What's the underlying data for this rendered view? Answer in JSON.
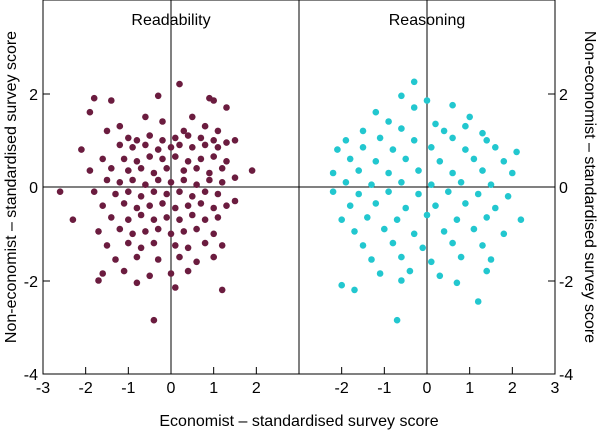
{
  "chart_data": {
    "type": "scatter",
    "xlabel": "Economist – standardised survey score",
    "ylabel_left": "Non-economist – standardised survey score",
    "ylabel_right": "Non-economist – standardised survey score",
    "ylim": [
      -4,
      4
    ],
    "y_ticks": [
      "2",
      "0",
      "-2",
      "-4"
    ],
    "grid": false,
    "panels": [
      {
        "title": "Readability",
        "color": "#6b1c3f",
        "xlim": [
          -3,
          3
        ],
        "x_ticks": [
          "-3",
          "-2",
          "-1",
          "0",
          "1",
          "2"
        ],
        "points": [
          [
            0.2,
            2.2
          ],
          [
            -0.3,
            1.95
          ],
          [
            -1.8,
            1.9
          ],
          [
            -1.4,
            1.85
          ],
          [
            0.9,
            1.9
          ],
          [
            1.0,
            1.85
          ],
          [
            -1.9,
            1.6
          ],
          [
            -0.6,
            1.5
          ],
          [
            0.5,
            1.5
          ],
          [
            1.3,
            1.7
          ],
          [
            -1.5,
            1.2
          ],
          [
            -1.2,
            1.3
          ],
          [
            -0.2,
            1.4
          ],
          [
            0.3,
            1.2
          ],
          [
            0.8,
            1.3
          ],
          [
            1.1,
            1.2
          ],
          [
            -1.0,
            1.05
          ],
          [
            -0.8,
            1.0
          ],
          [
            -0.5,
            1.1
          ],
          [
            -0.2,
            1.0
          ],
          [
            0.1,
            1.05
          ],
          [
            0.4,
            1.1
          ],
          [
            0.7,
            1.05
          ],
          [
            1.0,
            1.0
          ],
          [
            1.3,
            0.95
          ],
          [
            1.5,
            1.0
          ],
          [
            -2.1,
            0.8
          ],
          [
            -1.2,
            0.9
          ],
          [
            -0.9,
            0.85
          ],
          [
            -0.6,
            0.9
          ],
          [
            -0.3,
            0.8
          ],
          [
            0.0,
            0.85
          ],
          [
            0.2,
            0.9
          ],
          [
            0.5,
            0.85
          ],
          [
            0.8,
            0.9
          ],
          [
            1.1,
            0.85
          ],
          [
            -1.6,
            0.6
          ],
          [
            -1.1,
            0.6
          ],
          [
            -0.8,
            0.55
          ],
          [
            -0.5,
            0.65
          ],
          [
            -0.2,
            0.6
          ],
          [
            0.1,
            0.65
          ],
          [
            0.4,
            0.55
          ],
          [
            0.7,
            0.6
          ],
          [
            1.0,
            0.65
          ],
          [
            1.3,
            0.55
          ],
          [
            -1.9,
            0.35
          ],
          [
            -1.4,
            0.4
          ],
          [
            -1.0,
            0.35
          ],
          [
            -0.7,
            0.4
          ],
          [
            -0.4,
            0.3
          ],
          [
            -0.1,
            0.4
          ],
          [
            0.3,
            0.35
          ],
          [
            0.6,
            0.4
          ],
          [
            0.9,
            0.3
          ],
          [
            1.2,
            0.4
          ],
          [
            1.9,
            0.35
          ],
          [
            -1.5,
            0.15
          ],
          [
            -1.2,
            0.1
          ],
          [
            -0.9,
            0.15
          ],
          [
            -0.6,
            0.05
          ],
          [
            -0.3,
            0.15
          ],
          [
            0.0,
            0.1
          ],
          [
            0.3,
            0.15
          ],
          [
            0.6,
            0.05
          ],
          [
            0.9,
            0.15
          ],
          [
            1.2,
            0.1
          ],
          [
            1.5,
            0.2
          ],
          [
            -2.6,
            -0.1
          ],
          [
            -1.8,
            -0.1
          ],
          [
            -1.3,
            -0.15
          ],
          [
            -1.0,
            -0.1
          ],
          [
            -0.7,
            -0.2
          ],
          [
            -0.4,
            -0.1
          ],
          [
            -0.1,
            -0.15
          ],
          [
            0.2,
            -0.1
          ],
          [
            0.5,
            -0.2
          ],
          [
            0.8,
            -0.1
          ],
          [
            1.1,
            -0.15
          ],
          [
            1.5,
            -0.3
          ],
          [
            -1.6,
            -0.4
          ],
          [
            -1.1,
            -0.35
          ],
          [
            -0.8,
            -0.45
          ],
          [
            -0.5,
            -0.4
          ],
          [
            -0.2,
            -0.35
          ],
          [
            0.1,
            -0.45
          ],
          [
            0.4,
            -0.4
          ],
          [
            0.7,
            -0.35
          ],
          [
            1.0,
            -0.45
          ],
          [
            1.3,
            -0.4
          ],
          [
            -2.3,
            -0.7
          ],
          [
            -1.4,
            -0.65
          ],
          [
            -1.0,
            -0.7
          ],
          [
            -0.7,
            -0.6
          ],
          [
            -0.4,
            -0.7
          ],
          [
            -0.1,
            -0.65
          ],
          [
            0.2,
            -0.7
          ],
          [
            0.5,
            -0.6
          ],
          [
            0.8,
            -0.7
          ],
          [
            1.1,
            -0.65
          ],
          [
            -1.7,
            -0.95
          ],
          [
            -1.2,
            -0.9
          ],
          [
            -0.9,
            -1.0
          ],
          [
            -0.6,
            -0.95
          ],
          [
            -0.3,
            -0.9
          ],
          [
            0.0,
            -1.0
          ],
          [
            0.3,
            -0.95
          ],
          [
            0.6,
            -0.9
          ],
          [
            1.0,
            -1.0
          ],
          [
            -1.5,
            -1.25
          ],
          [
            -1.0,
            -1.2
          ],
          [
            -0.7,
            -1.3
          ],
          [
            -0.4,
            -1.2
          ],
          [
            0.1,
            -1.25
          ],
          [
            0.4,
            -1.3
          ],
          [
            0.8,
            -1.2
          ],
          [
            1.2,
            -1.25
          ],
          [
            -1.3,
            -1.55
          ],
          [
            -0.8,
            -1.5
          ],
          [
            -0.3,
            -1.55
          ],
          [
            0.2,
            -1.5
          ],
          [
            0.6,
            -1.6
          ],
          [
            1.0,
            -1.5
          ],
          [
            -1.6,
            -1.85
          ],
          [
            -1.1,
            -1.8
          ],
          [
            -0.5,
            -1.9
          ],
          [
            0.0,
            -1.85
          ],
          [
            0.4,
            -1.8
          ],
          [
            -1.7,
            -2.0
          ],
          [
            -0.8,
            -2.05
          ],
          [
            0.1,
            -2.15
          ],
          [
            1.2,
            -2.2
          ],
          [
            -0.4,
            -2.85
          ]
        ]
      },
      {
        "title": "Reasoning",
        "color": "#22c7cf",
        "xlim": [
          -3,
          3
        ],
        "x_ticks": [
          "-2",
          "-1",
          "0",
          "1",
          "2",
          "3"
        ],
        "points": [
          [
            -0.3,
            2.25
          ],
          [
            -0.6,
            1.95
          ],
          [
            0.0,
            1.85
          ],
          [
            0.6,
            1.75
          ],
          [
            -1.2,
            1.6
          ],
          [
            -0.3,
            1.7
          ],
          [
            1.0,
            1.5
          ],
          [
            -0.9,
            1.4
          ],
          [
            0.2,
            1.35
          ],
          [
            0.9,
            1.3
          ],
          [
            -1.5,
            1.2
          ],
          [
            -0.6,
            1.25
          ],
          [
            0.4,
            1.2
          ],
          [
            1.3,
            1.15
          ],
          [
            -1.9,
            1.0
          ],
          [
            -1.1,
            1.05
          ],
          [
            -0.3,
            1.0
          ],
          [
            0.6,
            1.05
          ],
          [
            1.4,
            1.0
          ],
          [
            -2.1,
            0.8
          ],
          [
            -1.5,
            0.85
          ],
          [
            -0.8,
            0.8
          ],
          [
            0.1,
            0.85
          ],
          [
            0.9,
            0.8
          ],
          [
            1.6,
            0.85
          ],
          [
            2.1,
            0.75
          ],
          [
            -1.8,
            0.6
          ],
          [
            -1.2,
            0.55
          ],
          [
            -0.5,
            0.6
          ],
          [
            0.3,
            0.55
          ],
          [
            1.1,
            0.6
          ],
          [
            1.8,
            0.55
          ],
          [
            -2.2,
            0.3
          ],
          [
            -1.6,
            0.35
          ],
          [
            -0.9,
            0.3
          ],
          [
            -0.2,
            0.35
          ],
          [
            0.6,
            0.3
          ],
          [
            1.3,
            0.35
          ],
          [
            2.0,
            0.3
          ],
          [
            -1.9,
            0.1
          ],
          [
            -1.3,
            0.05
          ],
          [
            -0.6,
            0.1
          ],
          [
            0.1,
            0.05
          ],
          [
            0.8,
            0.1
          ],
          [
            1.5,
            0.05
          ],
          [
            -2.2,
            -0.1
          ],
          [
            -1.6,
            -0.15
          ],
          [
            -0.9,
            -0.1
          ],
          [
            -0.2,
            -0.15
          ],
          [
            0.5,
            -0.1
          ],
          [
            1.2,
            -0.15
          ],
          [
            1.9,
            -0.2
          ],
          [
            -1.8,
            -0.4
          ],
          [
            -1.2,
            -0.35
          ],
          [
            -0.5,
            -0.45
          ],
          [
            0.2,
            -0.4
          ],
          [
            0.9,
            -0.35
          ],
          [
            1.6,
            -0.45
          ],
          [
            2.2,
            -0.7
          ],
          [
            -2.0,
            -0.7
          ],
          [
            -1.4,
            -0.65
          ],
          [
            -0.7,
            -0.7
          ],
          [
            0.0,
            -0.6
          ],
          [
            0.7,
            -0.7
          ],
          [
            1.4,
            -0.65
          ],
          [
            -1.7,
            -0.95
          ],
          [
            -1.0,
            -0.9
          ],
          [
            -0.3,
            -1.0
          ],
          [
            0.4,
            -0.95
          ],
          [
            1.1,
            -0.9
          ],
          [
            1.8,
            -1.0
          ],
          [
            -1.5,
            -1.25
          ],
          [
            -0.8,
            -1.2
          ],
          [
            -0.1,
            -1.3
          ],
          [
            0.6,
            -1.2
          ],
          [
            1.3,
            -1.25
          ],
          [
            -1.3,
            -1.55
          ],
          [
            -0.6,
            -1.5
          ],
          [
            0.1,
            -1.6
          ],
          [
            0.8,
            -1.5
          ],
          [
            1.5,
            -1.55
          ],
          [
            -1.1,
            -1.85
          ],
          [
            -0.4,
            -1.8
          ],
          [
            0.3,
            -1.9
          ],
          [
            1.4,
            -1.8
          ],
          [
            -2.0,
            -2.1
          ],
          [
            -1.7,
            -2.2
          ],
          [
            -0.6,
            -2.0
          ],
          [
            0.7,
            -2.05
          ],
          [
            1.2,
            -2.45
          ],
          [
            -0.7,
            -2.85
          ]
        ]
      }
    ]
  }
}
